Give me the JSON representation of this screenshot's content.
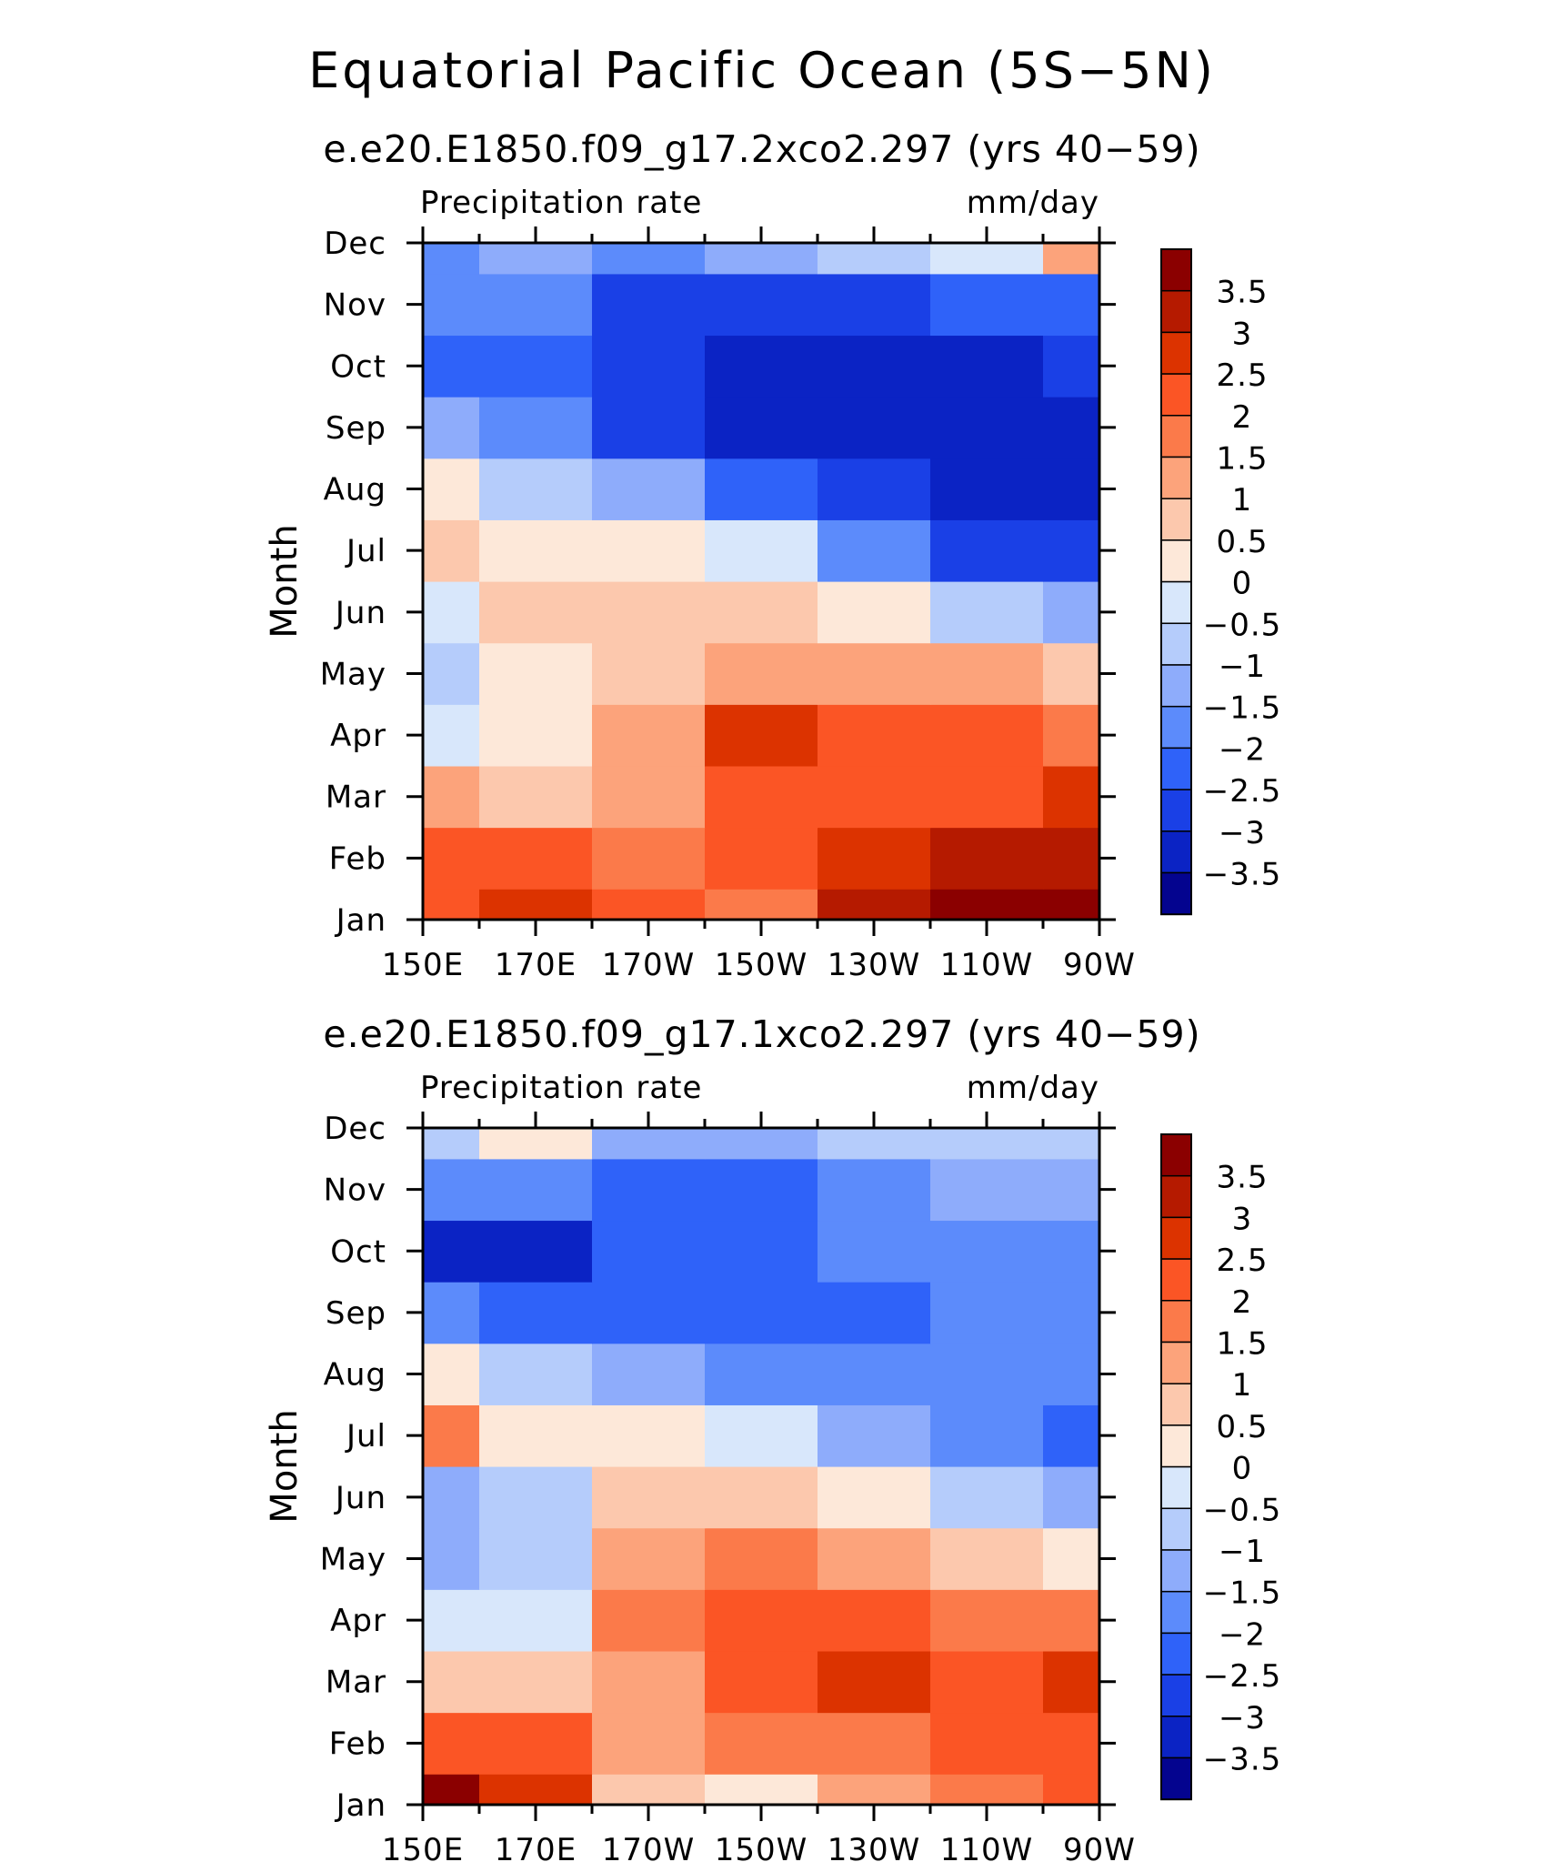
{
  "title": "Equatorial Pacific Ocean (5S−5N)",
  "colorbar_levels": [
    "3.5",
    "3",
    "2.5",
    "2",
    "1.5",
    "1",
    "0.5",
    "0",
    "−0.5",
    "−1",
    "−1.5",
    "−2",
    "−2.5",
    "−3",
    "−3.5"
  ],
  "colorbar_colors": [
    "#8b0000",
    "#b51a00",
    "#dc3300",
    "#fb5525",
    "#fb7a4a",
    "#fca37b",
    "#fcc8ad",
    "#fde8d9",
    "#d8e7fb",
    "#b5ccfb",
    "#8eacfb",
    "#5c8bfb",
    "#2f62f9",
    "#1a40e6",
    "#0b23c4",
    "#04048f"
  ],
  "chart_data": [
    {
      "type": "heatmap",
      "title": "e.e20.E1850.f09_g17.2xco2.297 (yrs 40−59)",
      "left_label": "Precipitation rate",
      "right_label": "mm/day",
      "ylabel": "Month",
      "xlabel": "",
      "x": [
        "150E",
        "170E",
        "170W",
        "150W",
        "130W",
        "110W",
        "90W"
      ],
      "y": [
        "Jan",
        "Feb",
        "Mar",
        "Apr",
        "May",
        "Jun",
        "Jul",
        "Aug",
        "Sep",
        "Oct",
        "Nov",
        "Dec"
      ],
      "values": [
        [
          2.2,
          3.0,
          2.2,
          2.0,
          3.5,
          3.8,
          3.9
        ],
        [
          2.5,
          2.2,
          2.0,
          2.2,
          2.8,
          3.2,
          3.2
        ],
        [
          1.2,
          0.6,
          1.5,
          2.5,
          2.5,
          2.5,
          2.6
        ],
        [
          -0.4,
          0.2,
          1.5,
          2.6,
          2.5,
          2.2,
          1.8
        ],
        [
          -0.5,
          0.3,
          1.0,
          1.5,
          1.4,
          1.2,
          0.8
        ],
        [
          -0.2,
          0.7,
          0.8,
          0.8,
          0.3,
          -0.6,
          -1.4
        ],
        [
          1.0,
          0.4,
          0.4,
          -0.3,
          -1.5,
          -2.5,
          -2.8
        ],
        [
          0.5,
          -0.5,
          -1.2,
          -2.0,
          -2.7,
          -3.1,
          -3.1
        ],
        [
          -1.0,
          -1.6,
          -2.6,
          -3.0,
          -3.1,
          -3.1,
          -3.0
        ],
        [
          -2.3,
          -2.0,
          -2.6,
          -3.1,
          -3.0,
          -3.0,
          -2.9
        ],
        [
          -1.6,
          -1.6,
          -2.5,
          -2.9,
          -2.6,
          -2.2,
          -2.0
        ],
        [
          -1.8,
          -1.4,
          -1.5,
          -1.2,
          -0.9,
          -0.1,
          1.5
        ]
      ],
      "zlim": [
        -4,
        4
      ]
    },
    {
      "type": "heatmap",
      "title": "e.e20.E1850.f09_g17.1xco2.297 (yrs 40−59)",
      "left_label": "Precipitation rate",
      "right_label": "mm/day",
      "ylabel": "Month",
      "xlabel": "",
      "x": [
        "150E",
        "170E",
        "170W",
        "150W",
        "130W",
        "110W",
        "90W"
      ],
      "y": [
        "Jan",
        "Feb",
        "Mar",
        "Apr",
        "May",
        "Jun",
        "Jul",
        "Aug",
        "Sep",
        "Oct",
        "Nov",
        "Dec"
      ],
      "values": [
        [
          3.6,
          2.6,
          0.8,
          0.2,
          1.2,
          2.0,
          2.2
        ],
        [
          2.4,
          2.2,
          1.3,
          1.8,
          2.0,
          2.2,
          2.4
        ],
        [
          0.6,
          0.8,
          1.4,
          2.4,
          2.6,
          2.4,
          2.6
        ],
        [
          -0.3,
          0.0,
          1.8,
          2.4,
          2.1,
          1.6,
          1.6
        ],
        [
          -1.2,
          -0.8,
          1.2,
          1.6,
          1.2,
          0.6,
          0.2
        ],
        [
          -1.1,
          -0.5,
          1.0,
          0.8,
          0.2,
          -0.6,
          -1.2
        ],
        [
          1.6,
          0.3,
          0.4,
          -0.4,
          -1.2,
          -1.6,
          -2.0
        ],
        [
          0.5,
          -0.6,
          -1.2,
          -1.8,
          -1.9,
          -1.7,
          -1.8
        ],
        [
          -1.6,
          -2.0,
          -2.0,
          -2.0,
          -2.0,
          -1.8,
          -1.8
        ],
        [
          -3.0,
          -3.0,
          -2.4,
          -2.4,
          -1.8,
          -1.6,
          -1.8
        ],
        [
          -1.8,
          -1.8,
          -2.2,
          -2.0,
          -1.6,
          -1.3,
          -1.2
        ],
        [
          -0.5,
          0.5,
          -1.0,
          -1.3,
          -0.9,
          -0.6,
          -0.5
        ]
      ],
      "zlim": [
        -4,
        4
      ]
    }
  ]
}
